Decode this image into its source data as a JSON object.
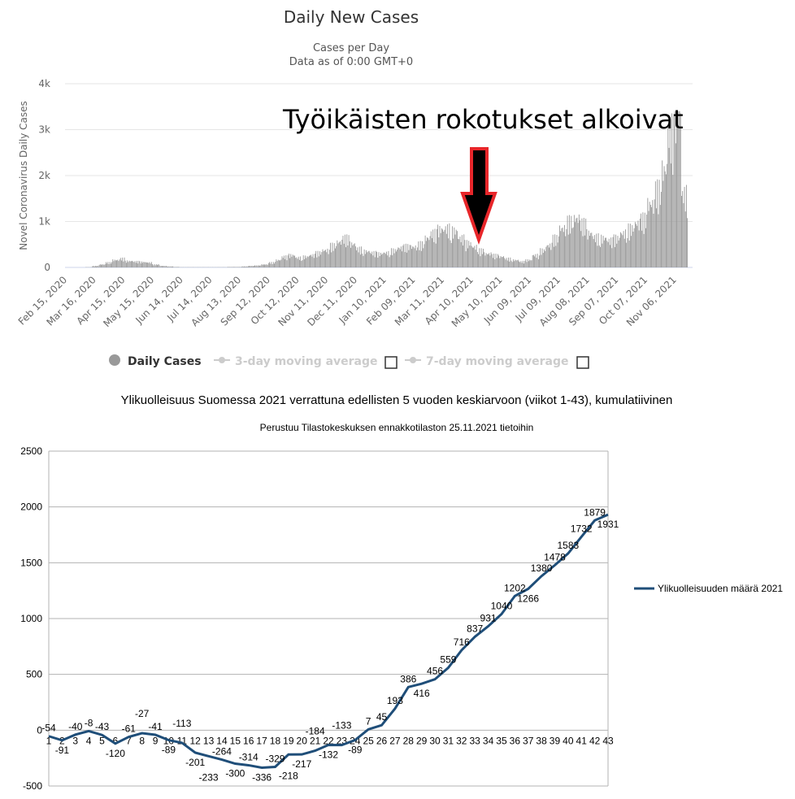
{
  "chart_data": [
    {
      "type": "bar",
      "title": "Daily New Cases",
      "subtitle": "Cases per Day",
      "subtitle2": "Data as of 0:00 GMT+0",
      "ylabel": "Novel Coronavirus Daily Cases",
      "ylim": [
        0,
        4000
      ],
      "yticks": [
        "0",
        "1k",
        "2k",
        "3k",
        "4k"
      ],
      "xticks": [
        "Feb 15, 2020",
        "Mar 16, 2020",
        "Apr 15, 2020",
        "May 15, 2020",
        "Jun 14, 2020",
        "Jul 14, 2020",
        "Aug 13, 2020",
        "Sep 12, 2020",
        "Oct 12, 2020",
        "Nov 11, 2020",
        "Dec 11, 2020",
        "Jan 10, 2021",
        "Feb 09, 2021",
        "Mar 11, 2021",
        "Apr 10, 2021",
        "May 10, 2021",
        "Jun 09, 2021",
        "Jul 09, 2021",
        "Aug 08, 2021",
        "Sep 07, 2021",
        "Oct 07, 2021",
        "Nov 06, 2021"
      ],
      "weekly_values_from_feb15_2020": [
        0,
        0,
        0,
        5,
        30,
        60,
        100,
        150,
        180,
        130,
        120,
        110,
        100,
        60,
        30,
        20,
        10,
        5,
        5,
        5,
        5,
        5,
        5,
        5,
        10,
        10,
        20,
        30,
        40,
        60,
        100,
        150,
        220,
        250,
        200,
        220,
        250,
        300,
        350,
        450,
        520,
        600,
        480,
        380,
        330,
        300,
        280,
        300,
        350,
        400,
        430,
        420,
        480,
        600,
        700,
        780,
        800,
        750,
        600,
        500,
        420,
        350,
        280,
        250,
        220,
        180,
        150,
        120,
        150,
        250,
        350,
        450,
        600,
        800,
        950,
        1000,
        900,
        700,
        620,
        600,
        550,
        600,
        700,
        800,
        900,
        1000,
        1300,
        1600,
        2000,
        2800,
        3300,
        1500
      ],
      "legend": [
        {
          "label": "Daily Cases",
          "active": true
        },
        {
          "label": "3-day moving average",
          "active": false
        },
        {
          "label": "7-day moving average",
          "active": false
        }
      ],
      "annotation": "Työikäisten rokotukset alkoivat",
      "colors": {
        "bar": "#999999",
        "arrow_fill": "#000000",
        "arrow_stroke": "#e8262a"
      }
    },
    {
      "type": "line",
      "title": "Ylikuolleisuus Suomessa 2021 verrattuna edellisten 5 vuoden keskiarvoon (viikot 1-43), kumulatiivinen",
      "subtitle": "Perustuu Tilastokeskuksen ennakkotilaston 25.11.2021 tietoihin",
      "ylim": [
        -500,
        2500
      ],
      "yticks": [
        -500,
        0,
        500,
        1000,
        1500,
        2000,
        2500
      ],
      "x": [
        1,
        2,
        3,
        4,
        5,
        6,
        7,
        8,
        9,
        10,
        11,
        12,
        13,
        14,
        15,
        16,
        17,
        18,
        19,
        20,
        21,
        22,
        23,
        24,
        25,
        26,
        27,
        28,
        29,
        30,
        31,
        32,
        33,
        34,
        35,
        36,
        37,
        38,
        39,
        40,
        41,
        42,
        43
      ],
      "series": [
        {
          "name": "Ylikuolleisuuden määrä 2021",
          "color": "#1f4e79",
          "values": [
            -54,
            -91,
            -40,
            -8,
            -43,
            -120,
            -61,
            -27,
            -41,
            -89,
            -113,
            -201,
            -233,
            -264,
            -300,
            -314,
            -336,
            -329,
            -218,
            -217,
            -184,
            -132,
            -133,
            -89,
            7,
            45,
            193,
            386,
            416,
            456,
            559,
            716,
            837,
            931,
            1040,
            1202,
            1266,
            1380,
            1478,
            1583,
            1732,
            1879,
            1931
          ]
        }
      ],
      "legend_position": "right"
    }
  ]
}
